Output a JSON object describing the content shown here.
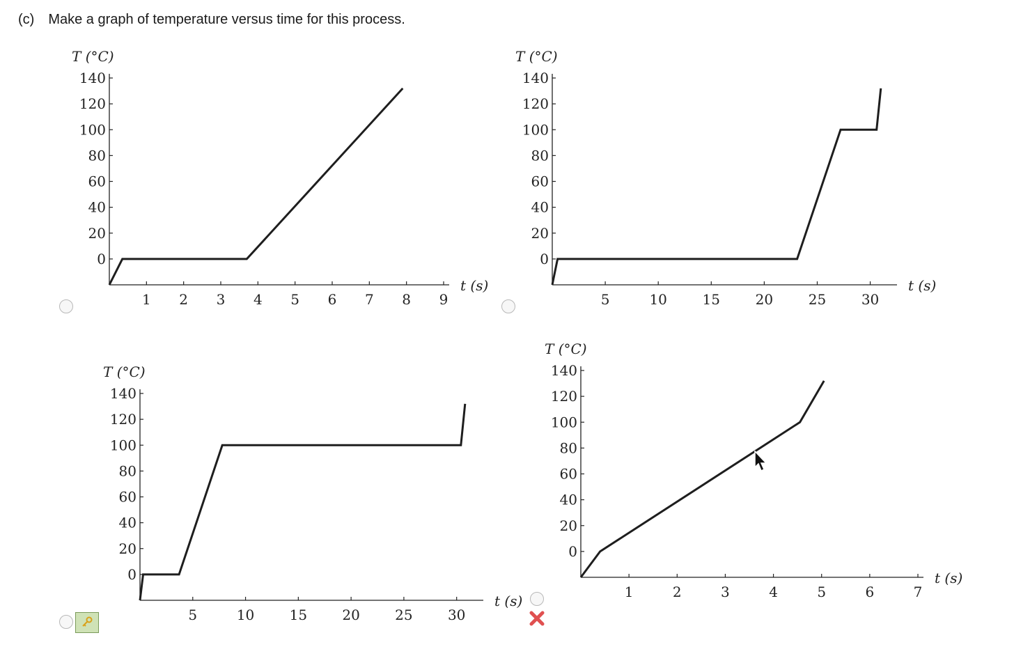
{
  "question": {
    "part": "(c)",
    "text": "Make a graph of temperature versus time for this process."
  },
  "colors": {
    "line": "#1e1e1e",
    "wrong": "#e05050",
    "key_bg": "#cfe2b6"
  },
  "icons": {
    "key": "key-icon",
    "wrong": "x-mark-icon",
    "cursor": "mouse-pointer-icon"
  },
  "options": [
    {
      "id": "a",
      "selected": false
    },
    {
      "id": "b",
      "selected": false
    },
    {
      "id": "c",
      "selected": false
    },
    {
      "id": "d",
      "selected": false
    }
  ],
  "chart_data": [
    {
      "type": "line",
      "ylabel": "T (°C)",
      "xlabel": "t (s)",
      "xlim": [
        0,
        9
      ],
      "ylim": [
        -20,
        140
      ],
      "xticks": [
        1,
        2,
        3,
        4,
        5,
        6,
        7,
        8,
        9
      ],
      "yticks": [
        0,
        20,
        40,
        60,
        80,
        100,
        120,
        140
      ],
      "points": [
        [
          0,
          -20
        ],
        [
          0.35,
          0
        ],
        [
          3.7,
          0
        ],
        [
          7.9,
          132
        ]
      ]
    },
    {
      "type": "line",
      "ylabel": "T (°C)",
      "xlabel": "t (s)",
      "xlim": [
        0,
        32
      ],
      "ylim": [
        -20,
        140
      ],
      "xticks": [
        5,
        10,
        15,
        20,
        25,
        30
      ],
      "yticks": [
        0,
        20,
        40,
        60,
        80,
        100,
        120,
        140
      ],
      "points": [
        [
          0,
          -20
        ],
        [
          0.5,
          0
        ],
        [
          23.1,
          0
        ],
        [
          27.2,
          100
        ],
        [
          30.6,
          100
        ],
        [
          31,
          132
        ]
      ]
    },
    {
      "type": "line",
      "ylabel": "T (°C)",
      "xlabel": "t (s)",
      "xlim": [
        0,
        32
      ],
      "ylim": [
        -20,
        140
      ],
      "xticks": [
        5,
        10,
        15,
        20,
        25,
        30
      ],
      "yticks": [
        0,
        20,
        40,
        60,
        80,
        100,
        120,
        140
      ],
      "points": [
        [
          0,
          -20
        ],
        [
          0.3,
          0
        ],
        [
          3.7,
          0
        ],
        [
          7.8,
          100
        ],
        [
          30.4,
          100
        ],
        [
          30.8,
          132
        ]
      ]
    },
    {
      "type": "line",
      "ylabel": "T (°C)",
      "xlabel": "t (s)",
      "xlim": [
        0,
        7
      ],
      "ylim": [
        -20,
        140
      ],
      "xticks": [
        1,
        2,
        3,
        4,
        5,
        6,
        7
      ],
      "yticks": [
        0,
        20,
        40,
        60,
        80,
        100,
        120,
        140
      ],
      "points": [
        [
          0,
          -20
        ],
        [
          0.4,
          0
        ],
        [
          4.55,
          100
        ],
        [
          5.05,
          132
        ]
      ]
    }
  ]
}
